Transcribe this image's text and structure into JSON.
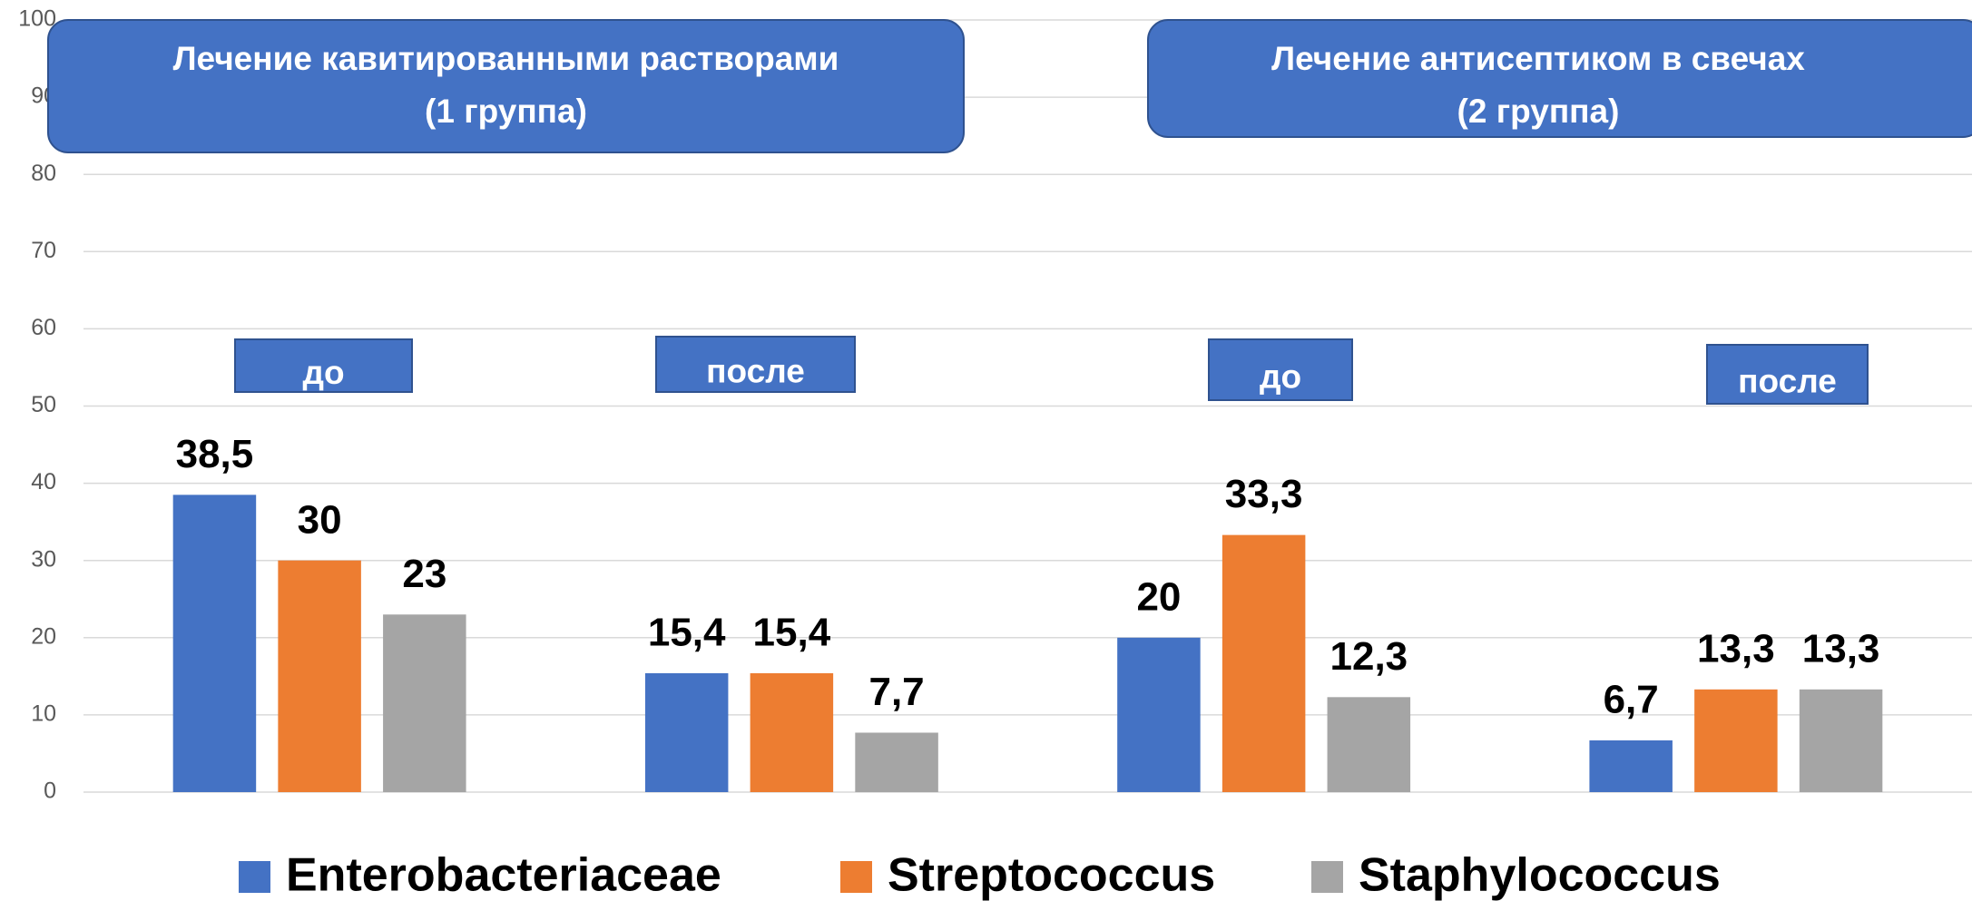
{
  "chart_data": {
    "type": "bar",
    "categories": [
      null,
      null,
      null,
      null
    ],
    "series": [
      {
        "name": "Enterobacteriaceae",
        "color": "#4472c4",
        "values": [
          38.5,
          15.4,
          20,
          6.7
        ],
        "value_labels": [
          "38,5",
          "15,4",
          "20",
          "6,7"
        ]
      },
      {
        "name": "Streptococcus",
        "color": "#ed7d31",
        "values": [
          30,
          15.4,
          33.3,
          13.3
        ],
        "value_labels": [
          "30",
          "15,4",
          "33,3",
          "13,3"
        ]
      },
      {
        "name": "Staphylococcus",
        "color": "#a5a5a5",
        "values": [
          23,
          7.7,
          12.3,
          13.3
        ],
        "value_labels": [
          "23",
          "7,7",
          "12,3",
          "13,3"
        ]
      }
    ],
    "ylim": [
      0,
      100
    ],
    "yticks": [
      0,
      10,
      20,
      30,
      40,
      50,
      60,
      70,
      80,
      90,
      100
    ],
    "grid": true,
    "legend": "bottom",
    "annotations": [
      {
        "lines": [
          "Лечение кавитированными растворами",
          "(1 группа)"
        ]
      },
      {
        "lines": [
          "Лечение антисептиком в свечах",
          "(2 группа)"
        ]
      },
      {
        "lines": [
          "до"
        ]
      },
      {
        "lines": [
          "после"
        ]
      },
      {
        "lines": [
          "до"
        ]
      },
      {
        "lines": [
          "после"
        ]
      }
    ]
  }
}
